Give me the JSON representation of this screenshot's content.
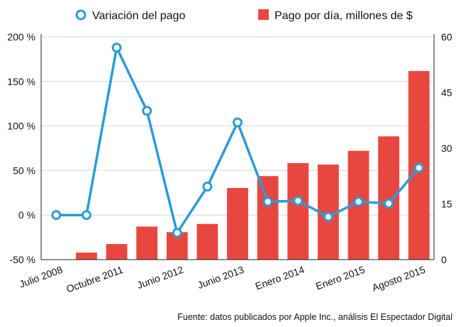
{
  "chart_data": {
    "type": "bar",
    "title": "",
    "source": "Fuente: datos publicados por Apple Inc., análisis El Espectador Digital",
    "categories": [
      "Julio 2008",
      "",
      "Octubre 2011",
      "",
      "Junio 2012",
      "",
      "Junio 2013",
      "",
      "Enero 2014",
      "",
      "Enero 2015",
      "",
      "Agosto 2015"
    ],
    "y_left": {
      "min": -50,
      "max": 200,
      "ticks": [
        "-50 %",
        "0 %",
        "50 %",
        "100 %",
        "150 %",
        "200 %"
      ],
      "tick_values": [
        -50,
        0,
        50,
        100,
        150,
        200
      ]
    },
    "y_right": {
      "min": 0,
      "max": 60,
      "ticks": [
        "0",
        "15",
        "30",
        "45",
        "60"
      ],
      "tick_values": [
        0,
        15,
        30,
        45,
        60
      ]
    },
    "series": [
      {
        "name": "Pago por día, millones de $",
        "kind": "bar",
        "axis": "right",
        "color": "#e8473f",
        "values": [
          0,
          1.9,
          4.2,
          8.9,
          7.4,
          9.6,
          19.3,
          22.5,
          26.0,
          25.6,
          29.3,
          33.2,
          50.8
        ]
      },
      {
        "name": "Variación del pago",
        "kind": "line",
        "axis": "left",
        "color": "#2d9bd6",
        "values": [
          0,
          0,
          188,
          117,
          -20,
          32,
          104,
          15,
          16,
          -2,
          15,
          13,
          53
        ]
      }
    ],
    "grid": "horizontal"
  }
}
